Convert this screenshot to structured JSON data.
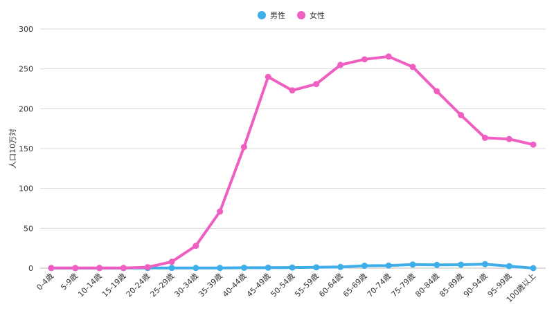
{
  "chart_data": {
    "type": "line",
    "title": "",
    "xlabel": "",
    "ylabel": "人口10万対",
    "ylim": [
      0,
      300
    ],
    "yticks": [
      0,
      50,
      100,
      150,
      200,
      250,
      300
    ],
    "grid": true,
    "legend_position": "top-center",
    "categories": [
      "0-4歳",
      "5-9歳",
      "10-14歳",
      "15-19歳",
      "20-24歳",
      "25-29歳",
      "30-34歳",
      "35-39歳",
      "40-44歳",
      "45-49歳",
      "50-54歳",
      "55-59歳",
      "60-64歳",
      "65-69歳",
      "70-74歳",
      "75-79歳",
      "80-84歳",
      "85-89歳",
      "90-94歳",
      "95-99歳",
      "100歳以上"
    ],
    "series": [
      {
        "name": "男性",
        "color": "#3daee9",
        "values": [
          0.1,
          0.1,
          0.1,
          0.1,
          0.2,
          0.3,
          0.3,
          0.3,
          0.5,
          0.6,
          0.8,
          1.0,
          1.5,
          3.0,
          3.3,
          4.5,
          4.1,
          4.3,
          5.0,
          2.5,
          0.0
        ]
      },
      {
        "name": "女性",
        "color": "#ef5fc1",
        "values": [
          0.3,
          0.2,
          0.3,
          0.3,
          1.2,
          8.0,
          28.0,
          71.0,
          152.0,
          240.0,
          223.0,
          231.0,
          255.0,
          262.0,
          265.5,
          252.5,
          222.0,
          192.0,
          163.5,
          162.0,
          155.0
        ]
      }
    ]
  }
}
